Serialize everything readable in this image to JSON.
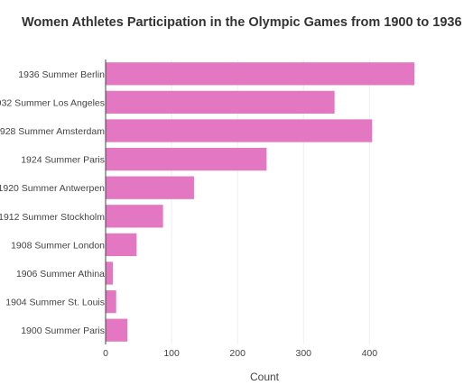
{
  "chart_data": {
    "type": "bar",
    "orientation": "horizontal",
    "title": "Women Athletes Participation in the Olympic Games from 1900 to 1936",
    "xlabel": "Count",
    "ylabel": "",
    "categories": [
      "1900 Summer Paris",
      "1904 Summer St. Louis",
      "1906 Summer Athina",
      "1908 Summer London",
      "1912 Summer Stockholm",
      "1920 Summer Antwerpen",
      "1924 Summer Paris",
      "928 Summer Amsterdam",
      "932 Summer Los Angeles",
      "1936 Summer Berlin"
    ],
    "values": [
      33,
      16,
      11,
      47,
      87,
      134,
      244,
      404,
      347,
      468
    ],
    "xlim": [
      0,
      472
    ],
    "xticks": [
      0,
      100,
      200,
      300,
      400
    ],
    "grid": true,
    "legend": "none",
    "bar_color": "#e377c2",
    "grid_color": "#eeeeee"
  }
}
